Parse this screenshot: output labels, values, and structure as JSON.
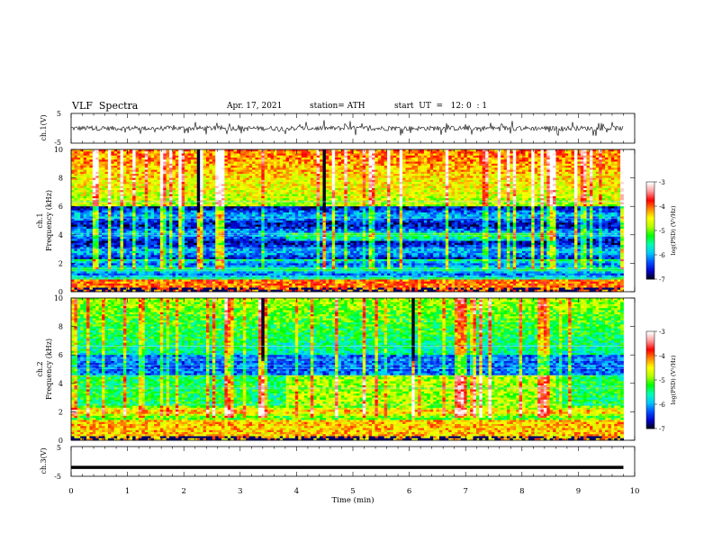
{
  "header": {
    "title": "VLF  Spectra",
    "date": "Apr. 17, 2021",
    "station": "station= ATH",
    "start": "start  UT  =   12: 0  : 1"
  },
  "chart_data": [
    {
      "type": "line",
      "panel": "ch1-waveform",
      "ylabel": "ch.1(V)",
      "ylim": [
        -5,
        5
      ],
      "yticks": [
        "5",
        "-5"
      ],
      "xlim": [
        0,
        10
      ],
      "description_series": "noisy waveform near 0 V spanning 0 to 9.8 min"
    },
    {
      "type": "heatmap",
      "panel": "ch1-spectrogram",
      "ylabel_top": "ch.1",
      "ylabel": "Frequency  (kHz)",
      "ylim": [
        0,
        10
      ],
      "yticks": [
        "0",
        "2",
        "4",
        "6",
        "8",
        "10"
      ],
      "xlim": [
        0,
        10
      ],
      "data_extent_min": 9.8,
      "colorbar": {
        "label": "log(PSD) (V²/Hz)",
        "range": [
          -7,
          -3
        ],
        "ticks": [
          "-3",
          "-4",
          "-5",
          "-6",
          "-7"
        ],
        "colors": [
          "#000000",
          "#0000c8",
          "#0050ff",
          "#00c8ff",
          "#00ffb4",
          "#00ff00",
          "#b4ff00",
          "#ffff00",
          "#ff8c00",
          "#ff0000",
          "#ff9999",
          "#ffffff"
        ]
      }
    },
    {
      "type": "heatmap",
      "panel": "ch2-spectrogram",
      "ylabel_top": "ch.2",
      "ylabel": "Frequency  (kHz)",
      "ylim": [
        0,
        10
      ],
      "yticks": [
        "0",
        "2",
        "4",
        "6",
        "8",
        "10"
      ],
      "xlim": [
        0,
        10
      ],
      "data_extent_min": 9.8,
      "colorbar": {
        "label": "log(PSD) (V²/Hz)",
        "range": [
          -7,
          -3
        ],
        "ticks": [
          "-3",
          "-4",
          "-5",
          "-6",
          "-7"
        ]
      }
    },
    {
      "type": "line",
      "panel": "ch3-waveform",
      "ylabel": "ch.3(V)",
      "ylim": [
        -5,
        5
      ],
      "yticks": [
        "5",
        "-5"
      ],
      "xlim": [
        0,
        10
      ],
      "constant_value": -2
    }
  ],
  "xaxis": {
    "label": "Time  (min)",
    "ticks": [
      "0",
      "1",
      "2",
      "3",
      "4",
      "5",
      "6",
      "7",
      "8",
      "9",
      "10"
    ]
  }
}
